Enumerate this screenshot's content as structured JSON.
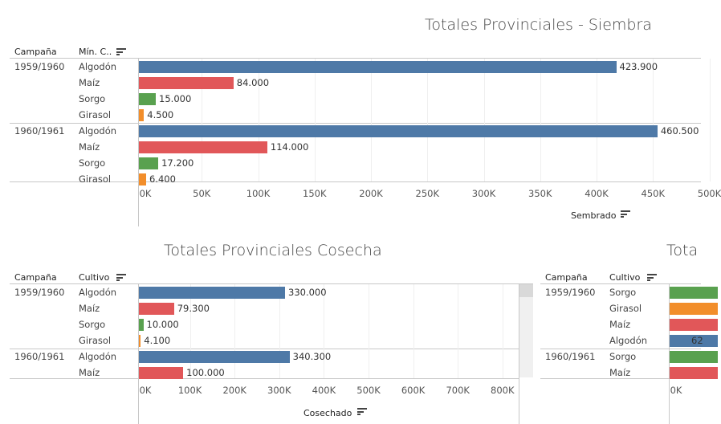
{
  "colors": {
    "Algodón": "#4e79a7",
    "Maíz": "#e15759",
    "Sorgo": "#59a14f",
    "Girasol": "#f28e2b"
  },
  "siembra": {
    "title": "Totales Provinciales - Siembra",
    "col_campana": "Campaña",
    "col_cultivo": "Mín. C..",
    "axis_title": "Sembrado",
    "ticks": [
      "0K",
      "50K",
      "100K",
      "150K",
      "200K",
      "250K",
      "300K",
      "350K",
      "400K",
      "450K",
      "500K"
    ],
    "values_labels": [
      "423.900",
      "84.000",
      "15.000",
      "4.500",
      "460.500",
      "114.000",
      "17.200",
      "6.400"
    ]
  },
  "cosecha": {
    "title": "Totales Provinciales Cosecha",
    "col_campana": "Campaña",
    "col_cultivo": "Cultivo",
    "axis_title": "Cosechado",
    "ticks": [
      "0K",
      "100K",
      "200K",
      "300K",
      "400K",
      "500K",
      "600K",
      "700K",
      "800K"
    ],
    "values_labels": [
      "330.000",
      "79.300",
      "10.000",
      "4.100",
      "340.300",
      "100.000"
    ]
  },
  "third": {
    "title": "Tota",
    "col_campana": "Campaña",
    "col_cultivo": "Cultivo",
    "ticks": [
      "0K"
    ],
    "value_label_partial": "62"
  },
  "chart_data": [
    {
      "type": "bar",
      "title": "Totales Provinciales - Siembra",
      "xlabel": "Sembrado",
      "xlim": [
        0,
        500000
      ],
      "groups": [
        {
          "campana": "1959/1960",
          "categories": [
            "Algodón",
            "Maíz",
            "Sorgo",
            "Girasol"
          ],
          "values": [
            423900,
            84000,
            15000,
            4500
          ]
        },
        {
          "campana": "1960/1961",
          "categories": [
            "Algodón",
            "Maíz",
            "Sorgo",
            "Girasol"
          ],
          "values": [
            460500,
            114000,
            17200,
            6400
          ]
        }
      ]
    },
    {
      "type": "bar",
      "title": "Totales Provinciales Cosecha",
      "xlabel": "Cosechado",
      "xlim": [
        0,
        850000
      ],
      "groups": [
        {
          "campana": "1959/1960",
          "categories": [
            "Algodón",
            "Maíz",
            "Sorgo",
            "Girasol"
          ],
          "values": [
            330000,
            79300,
            10000,
            4100
          ]
        },
        {
          "campana": "1960/1961",
          "categories": [
            "Algodón",
            "Maíz"
          ],
          "values": [
            340300,
            100000
          ]
        }
      ]
    },
    {
      "type": "bar",
      "title": "Tota",
      "groups": [
        {
          "campana": "1959/1960",
          "categories": [
            "Sorgo",
            "Girasol",
            "Maíz",
            "Algodón"
          ]
        },
        {
          "campana": "1960/1961",
          "categories": [
            "Sorgo",
            "Maíz"
          ]
        }
      ]
    }
  ]
}
